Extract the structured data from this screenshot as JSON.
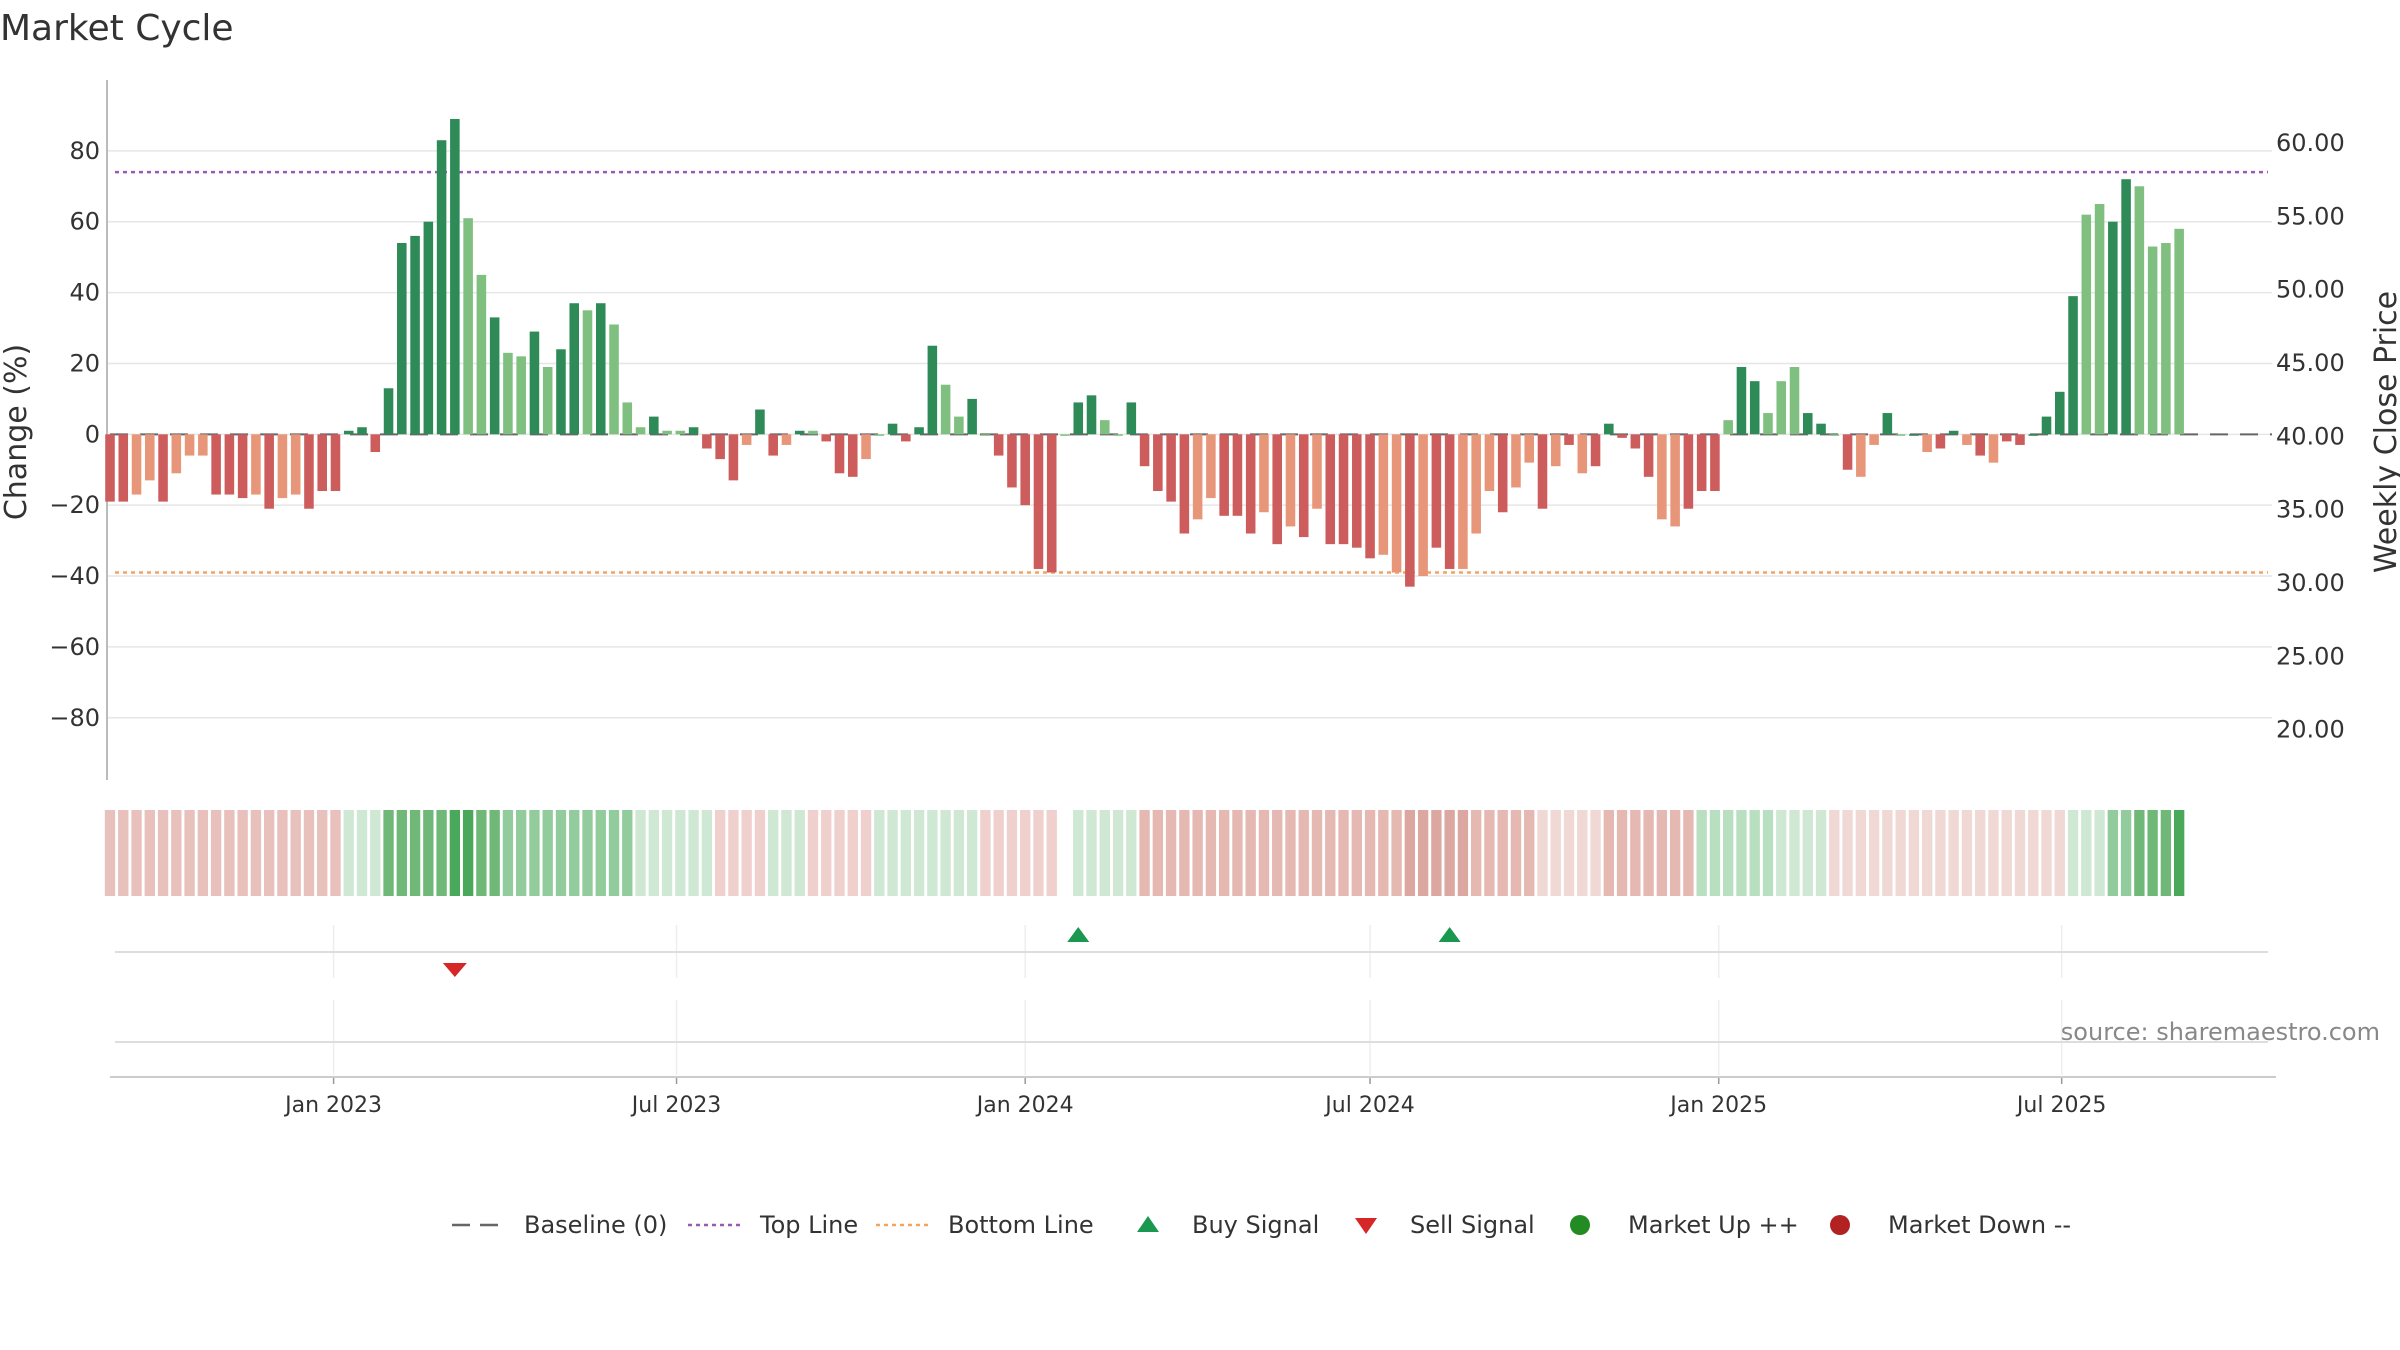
{
  "chart_data": {
    "type": "bar",
    "title": "Market Cycle",
    "ylabel": "Change (%)",
    "y2label": "Weekly Close Price",
    "ylim": [
      -97,
      100
    ],
    "y2lim": [
      16.7,
      64.3
    ],
    "yticks": [
      80,
      60,
      40,
      20,
      0,
      -20,
      -40,
      -60,
      -80
    ],
    "yticklabels": [
      "80",
      "60",
      "40",
      "20",
      "0",
      "−20",
      "−40",
      "−60",
      "−80"
    ],
    "y2ticks": [
      60,
      55,
      50,
      45,
      40,
      35,
      30,
      25,
      20
    ],
    "y2ticklabels": [
      "60.00",
      "55.00",
      "50.00",
      "45.00",
      "40.00",
      "35.00",
      "30.00",
      "25.00",
      "20.00"
    ],
    "grid": true,
    "top_line": 74,
    "bottom_line": -39,
    "x_start": "2022-09-05",
    "x_end": "2025-10-20",
    "xtick_dates": [
      "2023-01-01",
      "2023-07-01",
      "2024-01-01",
      "2024-07-01",
      "2025-01-01",
      "2025-07-01"
    ],
    "xtick_labels": [
      "Jan 2023",
      "Jul 2023",
      "Jan 2024",
      "Jul 2024",
      "Jan 2025",
      "Jul 2025"
    ],
    "series": [
      {
        "name": "Change (%)",
        "start_date": "2022-09-05",
        "interval_days": 7,
        "values": [
          -19,
          -19,
          -17,
          -13,
          -19,
          -11,
          -6,
          -6,
          -17,
          -17,
          -18,
          -17,
          -21,
          -18,
          -17,
          -21,
          -16,
          -16,
          1,
          2,
          -5,
          13,
          54,
          56,
          60,
          83,
          89,
          61,
          45,
          33,
          23,
          22,
          29,
          19,
          24,
          37,
          35,
          37,
          31,
          9,
          2,
          5,
          1,
          1,
          2,
          -4,
          -7,
          -13,
          -3,
          7,
          -6,
          -3,
          1,
          1,
          -2,
          -11,
          -12,
          -7,
          0,
          3,
          -2,
          2,
          25,
          14,
          5,
          10,
          0,
          -6,
          -15,
          -20,
          -38,
          -39,
          0,
          9,
          11,
          4,
          0,
          9,
          -9,
          -16,
          -19,
          -28,
          -24,
          -18,
          -23,
          -23,
          -28,
          -22,
          -31,
          -26,
          -29,
          -21,
          -31,
          -31,
          -32,
          -35,
          -34,
          -39,
          -43,
          -40,
          -32,
          -38,
          -38,
          -28,
          -16,
          -22,
          -15,
          -8,
          -21,
          -9,
          -3,
          -11,
          -9,
          3,
          -1,
          -4,
          -12,
          -24,
          -26,
          -21,
          -16,
          -16,
          4,
          19,
          15,
          6,
          15,
          19,
          6,
          3,
          0,
          -10,
          -12,
          -3,
          6,
          0,
          0,
          -5,
          -4,
          1,
          -3,
          -6,
          -8,
          -2,
          -3,
          0,
          5,
          12,
          39,
          62,
          65,
          60,
          72,
          70,
          53,
          54,
          58
        ],
        "shades": [
          1,
          1,
          0,
          0,
          1,
          0,
          0,
          0,
          1,
          1,
          1,
          0,
          1,
          0,
          0,
          1,
          1,
          1,
          1,
          1,
          1,
          1,
          1,
          1,
          1,
          1,
          1,
          0,
          0,
          1,
          0,
          0,
          1,
          0,
          1,
          1,
          0,
          1,
          0,
          0,
          0,
          1,
          0,
          0,
          1,
          1,
          1,
          1,
          0,
          1,
          1,
          0,
          1,
          0,
          1,
          1,
          1,
          0,
          0,
          1,
          1,
          1,
          1,
          0,
          0,
          1,
          0,
          1,
          1,
          1,
          1,
          1,
          0,
          1,
          1,
          0,
          0,
          1,
          1,
          1,
          1,
          1,
          0,
          0,
          1,
          1,
          1,
          0,
          1,
          0,
          1,
          0,
          1,
          1,
          1,
          1,
          0,
          0,
          1,
          0,
          1,
          1,
          0,
          0,
          0,
          1,
          0,
          0,
          1,
          0,
          1,
          0,
          1,
          1,
          1,
          1,
          1,
          0,
          0,
          1,
          1,
          1,
          0,
          1,
          1,
          0,
          0,
          0,
          1,
          1,
          0,
          1,
          0,
          0,
          1,
          0,
          1,
          0,
          1,
          1,
          0,
          1,
          0,
          1,
          1,
          1,
          1,
          1,
          1,
          0,
          0,
          1,
          1
        ],
        "pale_color_up": "#7fbf7f",
        "bright_color_up": "#2e8b57",
        "pale_color_down": "#e8967a",
        "bright_color_down": "#cd5c5c"
      },
      {
        "name": "Baseline (0)",
        "value": 0,
        "color": "#666666",
        "style": "long-dash"
      },
      {
        "name": "Top Line",
        "value": 74,
        "color": "#9b59b6",
        "style": "dotted"
      },
      {
        "name": "Bottom Line",
        "value": -39,
        "color": "#f4a460",
        "style": "dotted"
      }
    ],
    "heat_strip": {
      "empty_index": 72,
      "bands": [
        [
          0,
          17,
          "#e8c0bc"
        ],
        [
          18,
          20,
          "#cfe8d4"
        ],
        [
          21,
          25,
          "#6fb878"
        ],
        [
          26,
          27,
          "#4aa85a"
        ],
        [
          28,
          29,
          "#6fb878"
        ],
        [
          30,
          39,
          "#93cc9c"
        ],
        [
          40,
          45,
          "#cfe8d4"
        ],
        [
          46,
          49,
          "#f0d0cc"
        ],
        [
          50,
          52,
          "#cfe8d4"
        ],
        [
          53,
          57,
          "#f0d0cc"
        ],
        [
          58,
          65,
          "#cfe8d4"
        ],
        [
          66,
          71,
          "#f0d0cc"
        ],
        [
          73,
          77,
          "#cfe8d4"
        ],
        [
          78,
          97,
          "#e6b8b2"
        ],
        [
          98,
          102,
          "#dca7a1"
        ],
        [
          103,
          107,
          "#e6b8b2"
        ],
        [
          108,
          112,
          "#f0d8d4"
        ],
        [
          113,
          119,
          "#e6b8b2"
        ],
        [
          120,
          125,
          "#b8e0c0"
        ],
        [
          126,
          129,
          "#cfe8d4"
        ],
        [
          130,
          147,
          "#f0d8d4"
        ],
        [
          148,
          150,
          "#cfe8d4"
        ],
        [
          151,
          152,
          "#93cc9c"
        ],
        [
          153,
          155,
          "#6fb878"
        ],
        [
          156,
          158,
          "#4aa85a"
        ],
        [
          159,
          160,
          "#6fb878"
        ]
      ]
    },
    "signals": [
      {
        "type": "Sell Signal",
        "index": 26,
        "color": "#d62728"
      },
      {
        "type": "Buy Signal",
        "index": 73,
        "color": "#1a9850"
      },
      {
        "type": "Buy Signal",
        "index": 101,
        "color": "#1a9850"
      }
    ],
    "legend": [
      {
        "label": "Baseline (0)",
        "kind": "dash",
        "color": "#666666"
      },
      {
        "label": "Top Line",
        "kind": "dot",
        "color": "#9b59b6"
      },
      {
        "label": "Bottom Line",
        "kind": "dot",
        "color": "#f4a460"
      },
      {
        "label": "Buy Signal",
        "kind": "tri-up",
        "color": "#1a9850"
      },
      {
        "label": "Sell Signal",
        "kind": "tri-down",
        "color": "#d62728"
      },
      {
        "label": "Market Up ++",
        "kind": "circle",
        "color": "#228b22"
      },
      {
        "label": "Market Down --",
        "kind": "circle",
        "color": "#b22222"
      }
    ],
    "legend_position": "bottom",
    "source": "source: sharemaestro.com"
  }
}
